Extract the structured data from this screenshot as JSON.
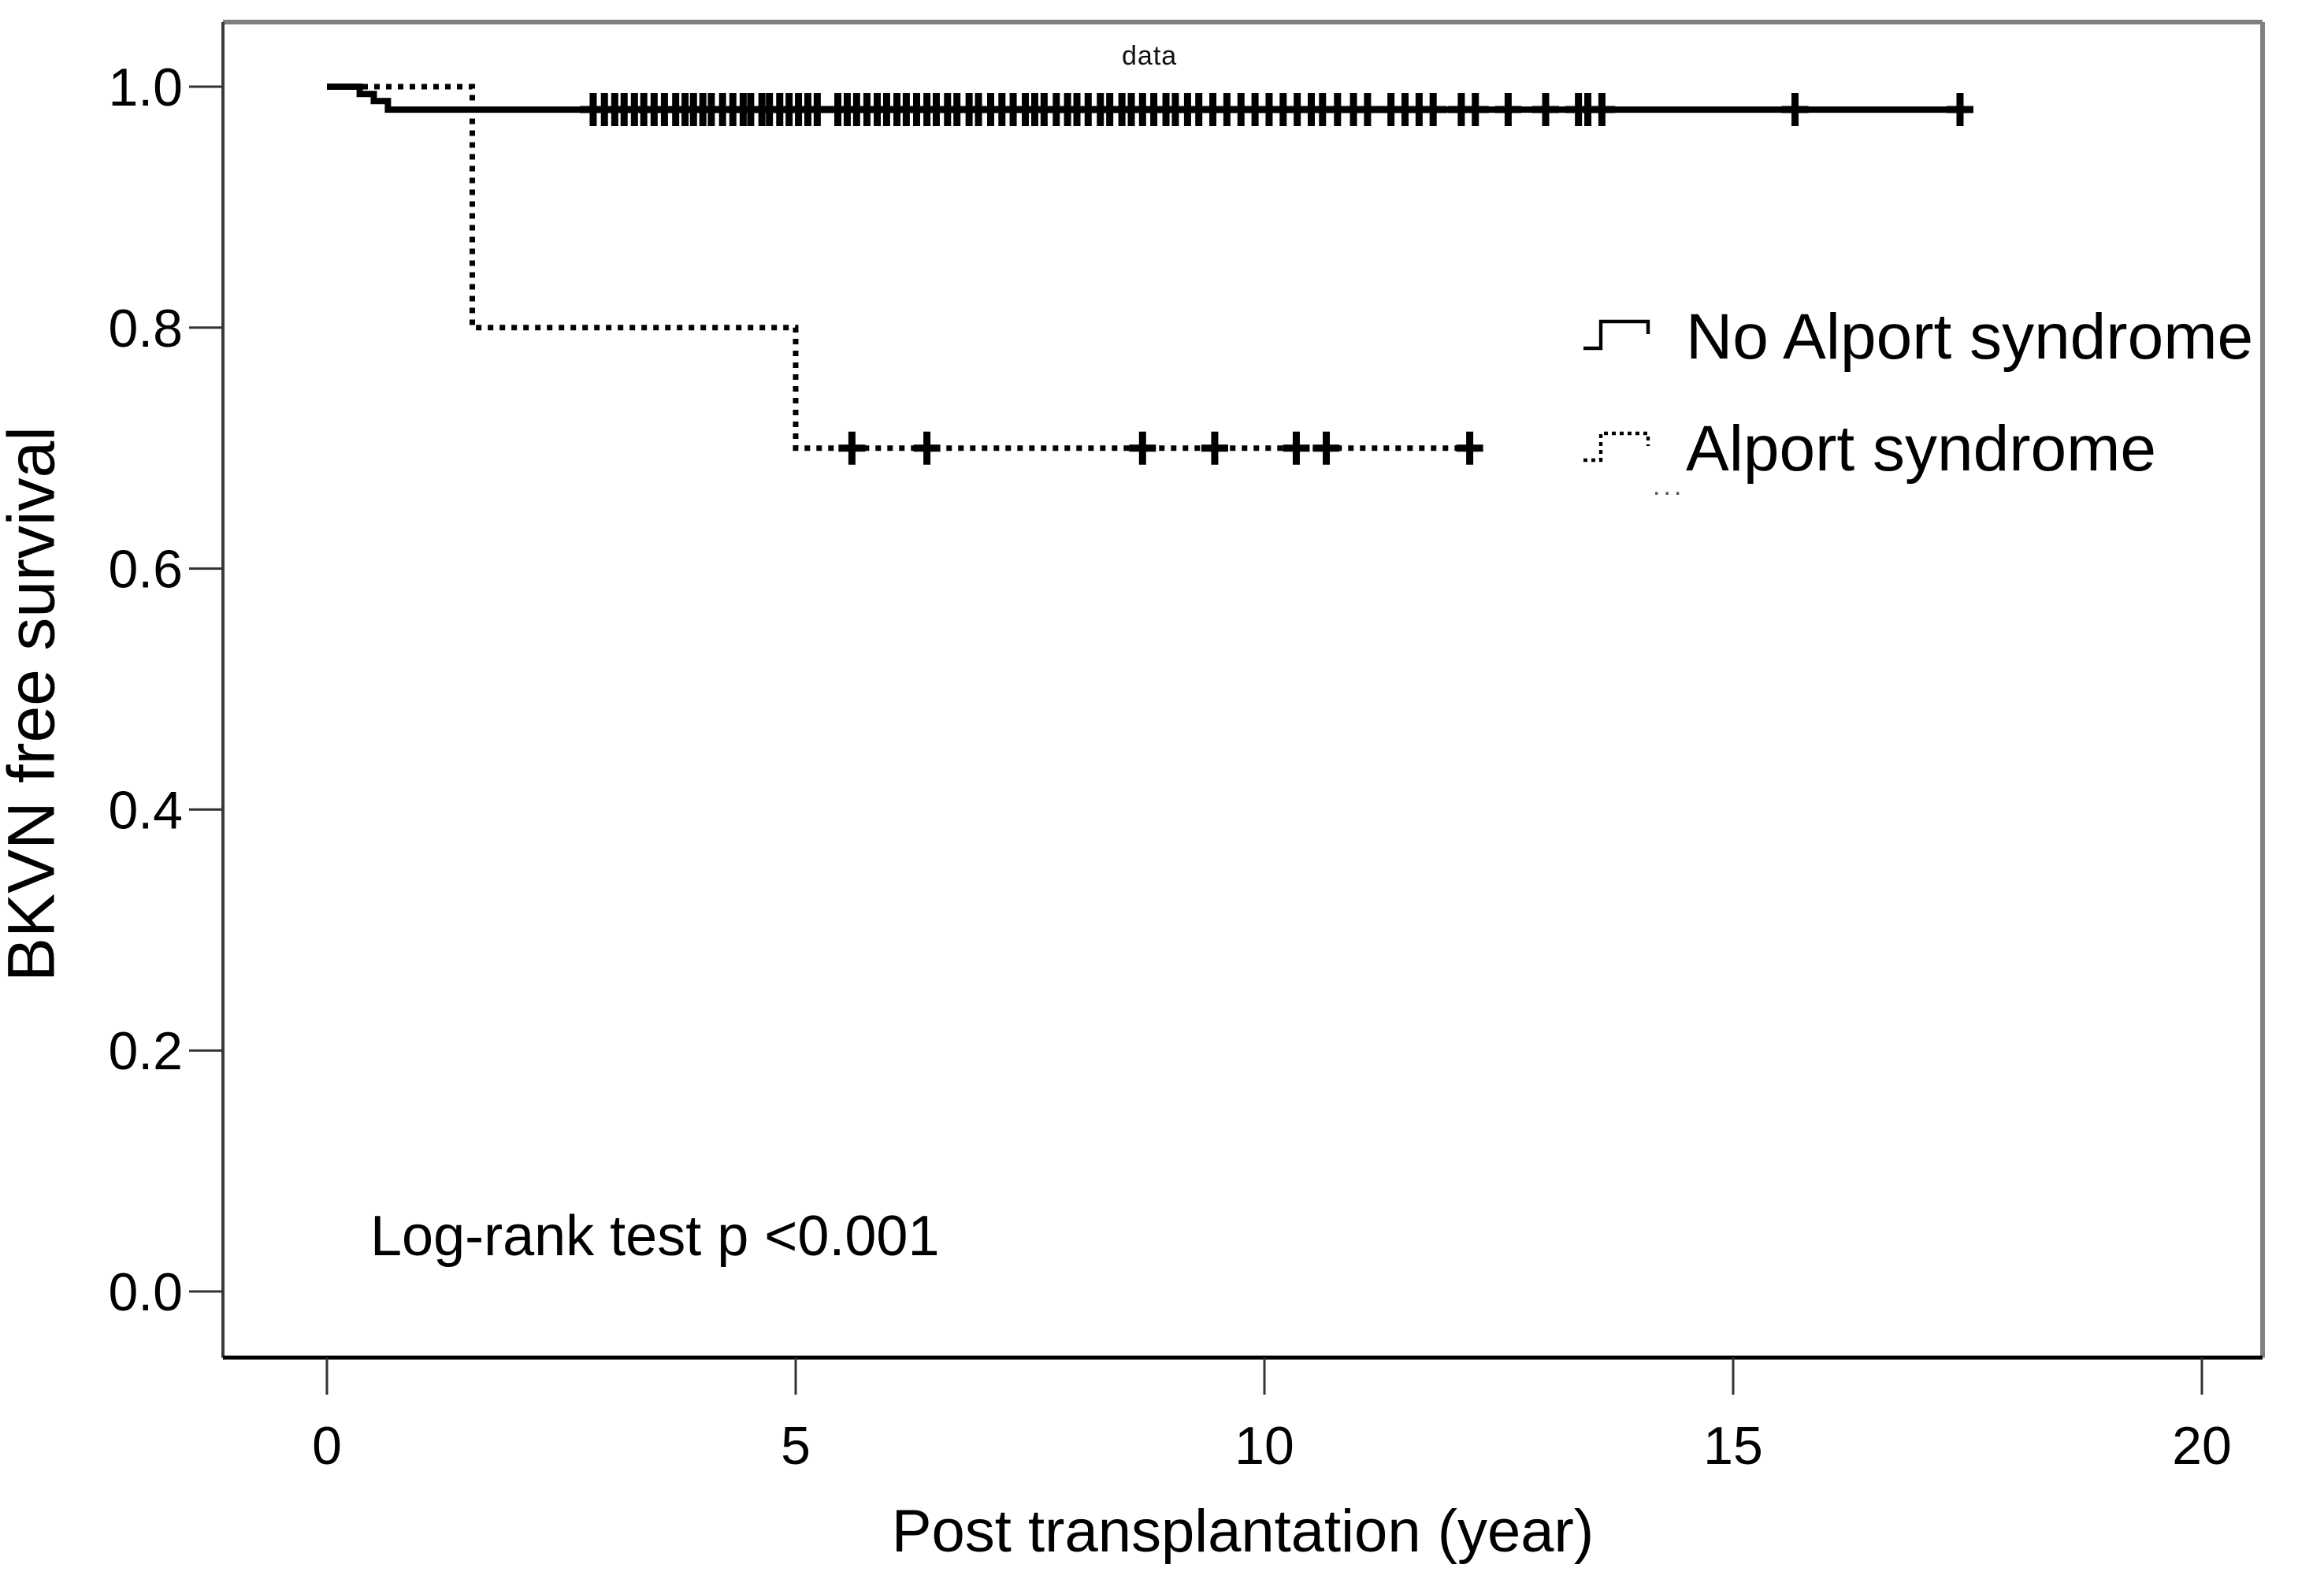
{
  "figure": {
    "x_axis_title": "Post transplantation (year)",
    "y_axis_title": "BKVN free survival",
    "annotation_logrank": "Log-rank test p <0.001",
    "tiny_artifact_text": "data",
    "legend_artifact_dots": "...",
    "line_color": "#000000",
    "frame_color": "#808080",
    "axis_color": "#000000"
  },
  "chart_data": {
    "type": "line",
    "subtype": "kaplan-meier-step",
    "title": "",
    "xlabel": "Post transplantation (year)",
    "ylabel": "BKVN free survival",
    "xlim": [
      0,
      20
    ],
    "ylim": [
      0.0,
      1.0
    ],
    "x_ticks": [
      0,
      5,
      10,
      15,
      20
    ],
    "x_tick_labels": [
      "0",
      "5",
      "10",
      "15",
      "20"
    ],
    "y_ticks": [
      0.0,
      0.2,
      0.4,
      0.6,
      0.8,
      1.0
    ],
    "y_tick_labels": [
      "0.0",
      "0.2",
      "0.4",
      "0.6",
      "0.8",
      "1.0"
    ],
    "grid": false,
    "legend_position": "upper-right-inside",
    "annotations": [
      {
        "text": "Log-rank test p <0.001",
        "x": 0.55,
        "y": 0.06
      },
      {
        "text": "data",
        "x": 8.5,
        "y": 1.0,
        "note_size": "tiny"
      }
    ],
    "series": [
      {
        "name": "No Alport syndrome",
        "line_style": "solid",
        "color": "#000000",
        "steps": [
          [
            0.0,
            1.0
          ],
          [
            0.35,
            1.0
          ],
          [
            0.35,
            0.994
          ],
          [
            0.5,
            0.994
          ],
          [
            0.5,
            0.988
          ],
          [
            0.65,
            0.988
          ],
          [
            0.65,
            0.981
          ],
          [
            17.42,
            0.981
          ]
        ],
        "censor_y": 0.981,
        "censor_times": [
          2.84,
          2.96,
          3.07,
          3.17,
          3.28,
          3.38,
          3.49,
          3.6,
          3.72,
          3.82,
          3.91,
          4.01,
          4.1,
          4.22,
          4.33,
          4.44,
          4.52,
          4.64,
          4.72,
          4.83,
          4.93,
          5.03,
          5.13,
          5.23,
          5.45,
          5.55,
          5.65,
          5.76,
          5.87,
          5.97,
          6.08,
          6.18,
          6.29,
          6.4,
          6.5,
          6.62,
          6.72,
          6.85,
          6.95,
          7.08,
          7.2,
          7.32,
          7.45,
          7.55,
          7.65,
          7.78,
          7.9,
          8.0,
          8.12,
          8.25,
          8.35,
          8.48,
          8.58,
          8.7,
          8.82,
          8.95,
          9.05,
          9.18,
          9.3,
          9.45,
          9.6,
          9.75,
          9.9,
          10.05,
          10.2,
          10.35,
          10.5,
          10.62,
          10.78,
          10.95,
          11.1,
          11.35,
          11.5,
          11.65,
          11.8,
          12.1,
          12.25,
          12.6,
          13.0,
          13.35,
          13.45,
          13.6,
          15.66,
          17.42
        ]
      },
      {
        "name": "Alport syndrome",
        "line_style": "dotted",
        "color": "#000000",
        "steps": [
          [
            0.0,
            1.0
          ],
          [
            1.55,
            1.0
          ],
          [
            1.55,
            0.8
          ],
          [
            5.0,
            0.8
          ],
          [
            5.0,
            0.7
          ],
          [
            12.19,
            0.7
          ]
        ],
        "censor_y": 0.7,
        "censor_times": [
          5.6,
          6.4,
          8.7,
          9.47,
          10.34,
          10.66,
          12.19
        ]
      }
    ]
  }
}
